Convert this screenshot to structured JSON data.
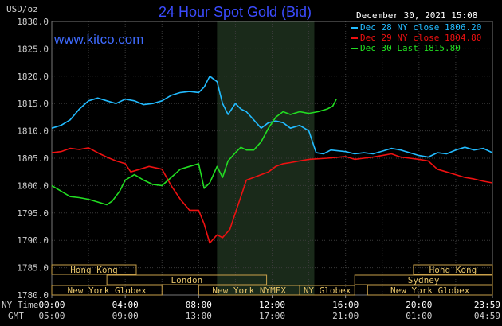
{
  "header": {
    "title": "24 Hour Spot Gold (Bid)",
    "website": "www.kitco.com",
    "timestamp": "December 30, 2021 15:08",
    "y_unit": "USD/oz"
  },
  "legend": [
    {
      "label": "Dec 28 NY close 1806.20",
      "color": "#22bbff"
    },
    {
      "label": "Dec 29 NY close 1804.80",
      "color": "#ee1111"
    },
    {
      "label": "Dec 30 Last 1815.80",
      "color": "#22dd22"
    }
  ],
  "time_axis": {
    "ny_time_label": "NY Time",
    "gmt_label": "GMT",
    "ny_ticks": [
      "00:00",
      "04:00",
      "08:00",
      "12:00",
      "16:00",
      "20:00",
      "23:59"
    ],
    "gmt_ticks": [
      "05:00",
      "09:00",
      "13:00",
      "17:00",
      "21:00",
      "01:00",
      "04:59"
    ]
  },
  "markets": {
    "row1": [
      "Hong Kong",
      "Hong Kong"
    ],
    "row2": [
      "London",
      "Sydney"
    ],
    "row3": [
      "New York Globex",
      "New York NYMEX",
      "NY Globex",
      "New York Globex"
    ]
  },
  "chart_data": {
    "type": "line",
    "x_unit": "NY time (hours)",
    "ylabel": "USD/oz",
    "ylim": [
      1780,
      1830
    ],
    "yticks": [
      1780.0,
      1785.0,
      1790.0,
      1795.0,
      1800.0,
      1805.0,
      1810.0,
      1815.0,
      1820.0,
      1825.0,
      1830.0
    ],
    "xlim": [
      0,
      24
    ],
    "highlight_band_hours": [
      9,
      14.3
    ],
    "series": [
      {
        "name": "Dec 28 NY close 1806.20",
        "color": "#22bbff",
        "points": [
          [
            0,
            1810.5
          ],
          [
            0.5,
            1811
          ],
          [
            1,
            1812
          ],
          [
            1.5,
            1814
          ],
          [
            2,
            1815.5
          ],
          [
            2.5,
            1816
          ],
          [
            3,
            1815.5
          ],
          [
            3.5,
            1815
          ],
          [
            4,
            1815.8
          ],
          [
            4.5,
            1815.5
          ],
          [
            5,
            1814.8
          ],
          [
            5.5,
            1815
          ],
          [
            6,
            1815.5
          ],
          [
            6.5,
            1816.5
          ],
          [
            7,
            1817
          ],
          [
            7.5,
            1817.2
          ],
          [
            8,
            1817
          ],
          [
            8.3,
            1818
          ],
          [
            8.6,
            1820
          ],
          [
            9,
            1819
          ],
          [
            9.3,
            1815
          ],
          [
            9.6,
            1813
          ],
          [
            10,
            1815
          ],
          [
            10.3,
            1814
          ],
          [
            10.6,
            1813.5
          ],
          [
            11,
            1812
          ],
          [
            11.4,
            1810.5
          ],
          [
            11.8,
            1811.5
          ],
          [
            12.2,
            1811.8
          ],
          [
            12.6,
            1811.5
          ],
          [
            13,
            1810.5
          ],
          [
            13.5,
            1811
          ],
          [
            14,
            1810
          ],
          [
            14.4,
            1806
          ],
          [
            14.8,
            1805.8
          ],
          [
            15.2,
            1806.5
          ],
          [
            16,
            1806.2
          ],
          [
            16.5,
            1805.8
          ],
          [
            17,
            1806
          ],
          [
            17.5,
            1805.8
          ],
          [
            18,
            1806.3
          ],
          [
            18.5,
            1806.8
          ],
          [
            19,
            1806.5
          ],
          [
            19.5,
            1806
          ],
          [
            20,
            1805.5
          ],
          [
            20.5,
            1805.2
          ],
          [
            21,
            1806
          ],
          [
            21.5,
            1805.8
          ],
          [
            22,
            1806.5
          ],
          [
            22.5,
            1807
          ],
          [
            23,
            1806.5
          ],
          [
            23.5,
            1806.8
          ],
          [
            24,
            1806
          ]
        ]
      },
      {
        "name": "Dec 29 NY close 1804.80",
        "color": "#ee1111",
        "points": [
          [
            0,
            1806
          ],
          [
            0.5,
            1806.2
          ],
          [
            1,
            1806.8
          ],
          [
            1.5,
            1806.6
          ],
          [
            2,
            1806.9
          ],
          [
            2.5,
            1806
          ],
          [
            3,
            1805.2
          ],
          [
            3.5,
            1804.5
          ],
          [
            4,
            1804
          ],
          [
            4.3,
            1802.5
          ],
          [
            4.8,
            1803
          ],
          [
            5.3,
            1803.5
          ],
          [
            6,
            1803
          ],
          [
            6.5,
            1800
          ],
          [
            7,
            1797.5
          ],
          [
            7.5,
            1795.5
          ],
          [
            8,
            1795.5
          ],
          [
            8.3,
            1793
          ],
          [
            8.6,
            1789.5
          ],
          [
            9,
            1791
          ],
          [
            9.3,
            1790.5
          ],
          [
            9.7,
            1792
          ],
          [
            10,
            1795
          ],
          [
            10.3,
            1798
          ],
          [
            10.6,
            1801
          ],
          [
            11,
            1801.5
          ],
          [
            11.4,
            1802
          ],
          [
            11.8,
            1802.5
          ],
          [
            12.2,
            1803.5
          ],
          [
            12.6,
            1804
          ],
          [
            13,
            1804.2
          ],
          [
            13.5,
            1804.5
          ],
          [
            14,
            1804.8
          ],
          [
            15,
            1805
          ],
          [
            16,
            1805.3
          ],
          [
            16.5,
            1804.8
          ],
          [
            17,
            1805
          ],
          [
            17.5,
            1805.2
          ],
          [
            18,
            1805.5
          ],
          [
            18.5,
            1805.8
          ],
          [
            19,
            1805.2
          ],
          [
            19.5,
            1805
          ],
          [
            20,
            1804.8
          ],
          [
            20.5,
            1804.5
          ],
          [
            21,
            1803
          ],
          [
            21.5,
            1802.5
          ],
          [
            22,
            1802
          ],
          [
            22.5,
            1801.5
          ],
          [
            23,
            1801.2
          ],
          [
            23.5,
            1800.8
          ],
          [
            24,
            1800.5
          ]
        ]
      },
      {
        "name": "Dec 30 Last 1815.80",
        "color": "#22dd22",
        "points": [
          [
            0,
            1800
          ],
          [
            0.5,
            1799
          ],
          [
            1,
            1798
          ],
          [
            1.5,
            1797.8
          ],
          [
            2,
            1797.5
          ],
          [
            2.5,
            1797
          ],
          [
            3,
            1796.5
          ],
          [
            3.3,
            1797.2
          ],
          [
            3.7,
            1799
          ],
          [
            4,
            1801
          ],
          [
            4.5,
            1802
          ],
          [
            5,
            1801
          ],
          [
            5.5,
            1800.2
          ],
          [
            6,
            1800
          ],
          [
            6.5,
            1801.5
          ],
          [
            7,
            1803
          ],
          [
            7.5,
            1803.5
          ],
          [
            8,
            1804
          ],
          [
            8.3,
            1799.5
          ],
          [
            8.6,
            1800.5
          ],
          [
            9,
            1803.5
          ],
          [
            9.3,
            1801.5
          ],
          [
            9.6,
            1804.5
          ],
          [
            10,
            1806
          ],
          [
            10.3,
            1807
          ],
          [
            10.6,
            1806.5
          ],
          [
            11,
            1806.5
          ],
          [
            11.4,
            1808
          ],
          [
            11.8,
            1810.5
          ],
          [
            12.2,
            1812.5
          ],
          [
            12.6,
            1813.5
          ],
          [
            13,
            1813
          ],
          [
            13.5,
            1813.5
          ],
          [
            14,
            1813.2
          ],
          [
            14.5,
            1813.5
          ],
          [
            15,
            1814
          ],
          [
            15.3,
            1814.5
          ],
          [
            15.5,
            1815.8
          ]
        ]
      }
    ]
  }
}
